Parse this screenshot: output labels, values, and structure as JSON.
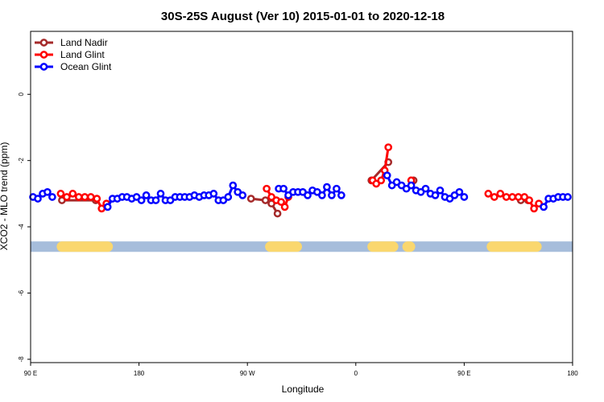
{
  "chart_data": {
    "type": "line",
    "title": "30S-25S August (Ver 10)   2015-01-01 to 2020-12-18",
    "xlabel": "Longitude",
    "ylabel": "XCO2 - MLO trend (ppm)",
    "xlim": [
      90,
      540
    ],
    "ylim": [
      -8.1,
      1.9
    ],
    "x_ticks": [
      {
        "value": 90,
        "label": "90 E"
      },
      {
        "value": 180,
        "label": "180"
      },
      {
        "value": 270,
        "label": "90 W"
      },
      {
        "value": 360,
        "label": "0"
      },
      {
        "value": 450,
        "label": "90 E"
      },
      {
        "value": 540,
        "label": "180"
      }
    ],
    "y_ticks": [
      {
        "value": 0,
        "label": "0"
      },
      {
        "value": -2,
        "label": "-2"
      },
      {
        "value": -4,
        "label": "-4"
      },
      {
        "value": -6,
        "label": "-6"
      },
      {
        "value": -8,
        "label": "-8"
      }
    ],
    "legend_position": "top-left",
    "land_ocean_band": {
      "y": -4.6,
      "ocean_color": "#a6bddb",
      "land_color": "#fad76e",
      "land_segments": [
        [
          116,
          154
        ],
        [
          289,
          311
        ],
        [
          374,
          391
        ],
        [
          403,
          405
        ],
        [
          473,
          510
        ]
      ]
    },
    "series": [
      {
        "name": "Land Nadir",
        "color": "#a52a2a",
        "segments": [
          [
            [
              116,
              -3.2
            ],
            [
              144,
              -3.2
            ]
          ],
          [
            [
              273,
              -3.15
            ],
            [
              285,
              -3.2
            ],
            [
              290,
              -3.3
            ],
            [
              295,
              -3.6
            ]
          ],
          [
            [
              373,
              -2.6
            ],
            [
              387,
              -2.05
            ]
          ],
          [
            [
              408,
              -2.6
            ]
          ],
          [
            [
              497,
              -3.2
            ],
            [
              503,
              -3.2
            ]
          ]
        ]
      },
      {
        "name": "Land Glint",
        "color": "#ff0000",
        "segments": [
          [
            [
              115,
              -3.0
            ],
            [
              120,
              -3.1
            ],
            [
              125,
              -3.0
            ],
            [
              130,
              -3.1
            ],
            [
              135,
              -3.1
            ],
            [
              140,
              -3.1
            ],
            [
              145,
              -3.15
            ],
            [
              149,
              -3.45
            ],
            [
              153,
              -3.3
            ]
          ],
          [
            [
              286,
              -2.85
            ],
            [
              290,
              -3.1
            ],
            [
              294,
              -3.2
            ],
            [
              298,
              -3.25
            ],
            [
              301,
              -3.4
            ],
            [
              304,
              -3.1
            ]
          ],
          [
            [
              374,
              -2.6
            ],
            [
              377,
              -2.7
            ],
            [
              381,
              -2.6
            ],
            [
              384,
              -2.3
            ],
            [
              387,
              -1.6
            ]
          ],
          [
            [
              406,
              -2.6
            ]
          ],
          [
            [
              470,
              -3.0
            ],
            [
              475,
              -3.1
            ],
            [
              480,
              -3.0
            ],
            [
              485,
              -3.1
            ],
            [
              490,
              -3.1
            ],
            [
              495,
              -3.1
            ],
            [
              500,
              -3.1
            ],
            [
              504,
              -3.2
            ],
            [
              508,
              -3.45
            ],
            [
              512,
              -3.3
            ]
          ]
        ]
      },
      {
        "name": "Ocean Glint",
        "color": "#0000ff",
        "segments": [
          [
            [
              92,
              -3.1
            ],
            [
              96,
              -3.15
            ],
            [
              100,
              -3.0
            ],
            [
              104,
              -2.95
            ],
            [
              108,
              -3.1
            ]
          ],
          [
            [
              154,
              -3.4
            ],
            [
              158,
              -3.15
            ],
            [
              162,
              -3.15
            ],
            [
              166,
              -3.1
            ],
            [
              170,
              -3.1
            ],
            [
              174,
              -3.15
            ],
            [
              178,
              -3.1
            ],
            [
              182,
              -3.2
            ],
            [
              186,
              -3.05
            ],
            [
              190,
              -3.2
            ],
            [
              194,
              -3.2
            ],
            [
              198,
              -3.0
            ],
            [
              202,
              -3.2
            ],
            [
              206,
              -3.2
            ],
            [
              210,
              -3.1
            ],
            [
              214,
              -3.1
            ],
            [
              218,
              -3.1
            ],
            [
              222,
              -3.1
            ],
            [
              226,
              -3.05
            ],
            [
              230,
              -3.1
            ],
            [
              234,
              -3.05
            ],
            [
              238,
              -3.05
            ],
            [
              242,
              -3.0
            ],
            [
              246,
              -3.2
            ],
            [
              250,
              -3.2
            ],
            [
              254,
              -3.1
            ],
            [
              258,
              -2.75
            ],
            [
              262,
              -2.95
            ],
            [
              266,
              -3.05
            ]
          ],
          [
            [
              296,
              -2.85
            ],
            [
              300,
              -2.85
            ],
            [
              304,
              -3.05
            ],
            [
              308,
              -2.95
            ],
            [
              312,
              -2.95
            ],
            [
              316,
              -2.95
            ],
            [
              320,
              -3.05
            ],
            [
              324,
              -2.9
            ],
            [
              328,
              -2.95
            ],
            [
              332,
              -3.05
            ],
            [
              336,
              -2.8
            ],
            [
              340,
              -3.05
            ],
            [
              344,
              -2.85
            ],
            [
              348,
              -3.05
            ]
          ],
          [
            [
              386,
              -2.45
            ],
            [
              390,
              -2.75
            ],
            [
              394,
              -2.65
            ],
            [
              398,
              -2.75
            ],
            [
              402,
              -2.85
            ],
            [
              406,
              -2.75
            ],
            [
              410,
              -2.9
            ],
            [
              414,
              -2.95
            ],
            [
              418,
              -2.85
            ],
            [
              422,
              -3.0
            ],
            [
              426,
              -3.05
            ],
            [
              430,
              -2.9
            ],
            [
              434,
              -3.1
            ],
            [
              438,
              -3.15
            ],
            [
              442,
              -3.05
            ],
            [
              446,
              -2.95
            ],
            [
              450,
              -3.1
            ]
          ],
          [
            [
              516,
              -3.4
            ],
            [
              520,
              -3.15
            ],
            [
              524,
              -3.15
            ],
            [
              528,
              -3.1
            ],
            [
              532,
              -3.1
            ],
            [
              536,
              -3.1
            ]
          ]
        ]
      }
    ]
  }
}
